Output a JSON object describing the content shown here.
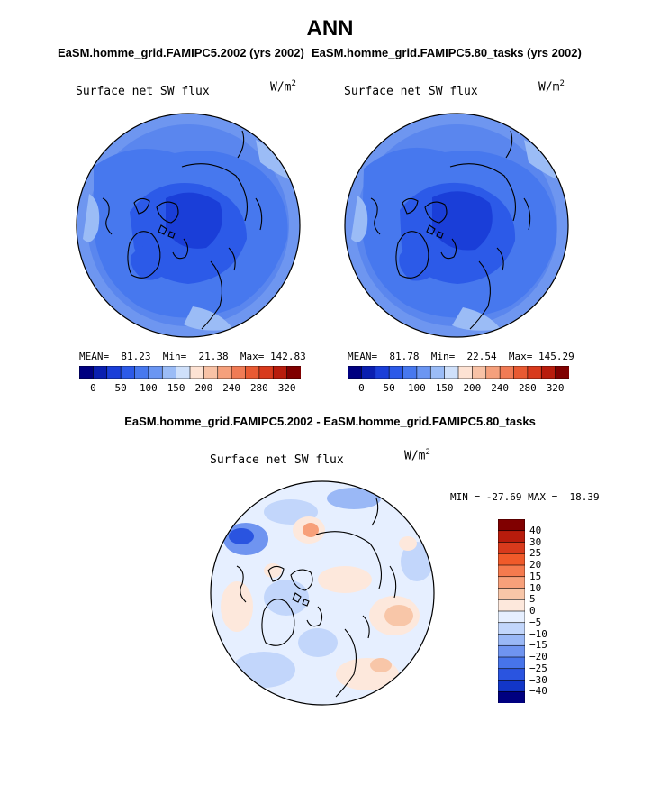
{
  "title": "ANN",
  "panels": [
    {
      "subtitle": "EaSM.homme_grid.FAMIPC5.2002 (yrs 2002)",
      "variable": "Surface net SW flux",
      "units": "W/m",
      "units_exp": "2",
      "stats": {
        "mean_label": "MEAN=",
        "mean": "81.23",
        "min_label": "Min=",
        "min": "21.38",
        "max_label": "Max=",
        "max": "142.83"
      },
      "colorbar_ticks": [
        "0",
        "50",
        "100",
        "150",
        "200",
        "240",
        "280",
        "320"
      ]
    },
    {
      "subtitle": "EaSM.homme_grid.FAMIPC5.80_tasks (yrs 2002)",
      "variable": "Surface net SW flux",
      "units": "W/m",
      "units_exp": "2",
      "stats": {
        "mean_label": "MEAN=",
        "mean": "81.78",
        "min_label": "Min=",
        "min": "22.54",
        "max_label": "Max=",
        "max": "145.29"
      },
      "colorbar_ticks": [
        "0",
        "50",
        "100",
        "150",
        "200",
        "240",
        "280",
        "320"
      ]
    }
  ],
  "diff": {
    "subtitle": "EaSM.homme_grid.FAMIPC5.2002 - EaSM.homme_grid.FAMIPC5.80_tasks",
    "variable": "Surface net SW flux",
    "units": "W/m",
    "units_exp": "2",
    "minmax": "MIN = -27.69 MAX =  18.39",
    "colorbar_ticks": [
      "40",
      "30",
      "25",
      "20",
      "15",
      "10",
      "5",
      "0",
      "−5",
      "−10",
      "−15",
      "−20",
      "−25",
      "−30",
      "−40"
    ]
  },
  "colors": {
    "abs_scale": [
      "#000080",
      "#0a1fb0",
      "#1a3ed8",
      "#2c5ae8",
      "#4778ee",
      "#6b96f2",
      "#9bbcf6",
      "#cfe0fa",
      "#fde2d3",
      "#f8c2a6",
      "#f5a07c",
      "#f07b55",
      "#e85a32",
      "#d83a1c",
      "#b81c0c",
      "#800000"
    ],
    "diff_scale": [
      "#800000",
      "#b81c0c",
      "#d83a1c",
      "#f05a2a",
      "#f57a4e",
      "#f7a07a",
      "#f8c6a8",
      "#fde8dc",
      "#e6efff",
      "#c2d6fb",
      "#9ab8f6",
      "#6f94f0",
      "#4774ea",
      "#2a54e0",
      "#1236c8",
      "#000080"
    ],
    "ocean_dark": "#1e48d8",
    "land_mid": "#4a7aee",
    "light_blue": "#6e96f0",
    "diff_bg": "#eef3ff"
  }
}
